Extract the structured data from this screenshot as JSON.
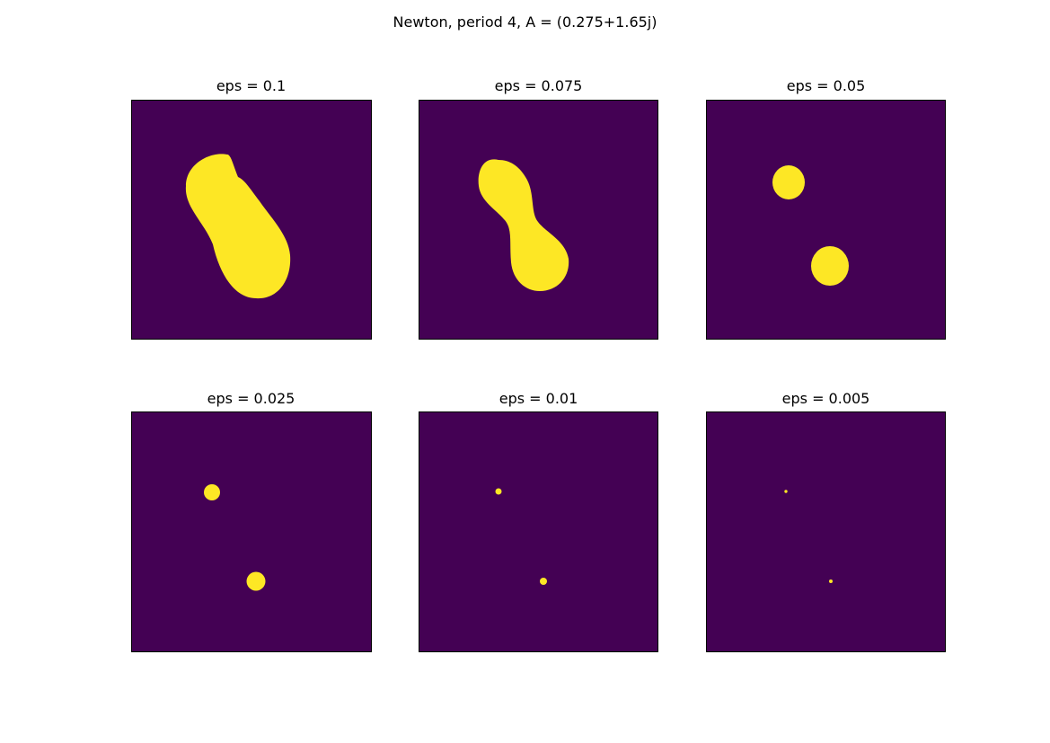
{
  "figure": {
    "title": "Newton, period 4, A = (0.275+1.65j)",
    "colors": {
      "background": "#440154",
      "foreground": "#fde725"
    }
  },
  "panels": [
    {
      "title": "eps = 0.1"
    },
    {
      "title": "eps = 0.075"
    },
    {
      "title": "eps = 0.05"
    },
    {
      "title": "eps = 0.025"
    },
    {
      "title": "eps = 0.01"
    },
    {
      "title": "eps = 0.005"
    }
  ]
}
